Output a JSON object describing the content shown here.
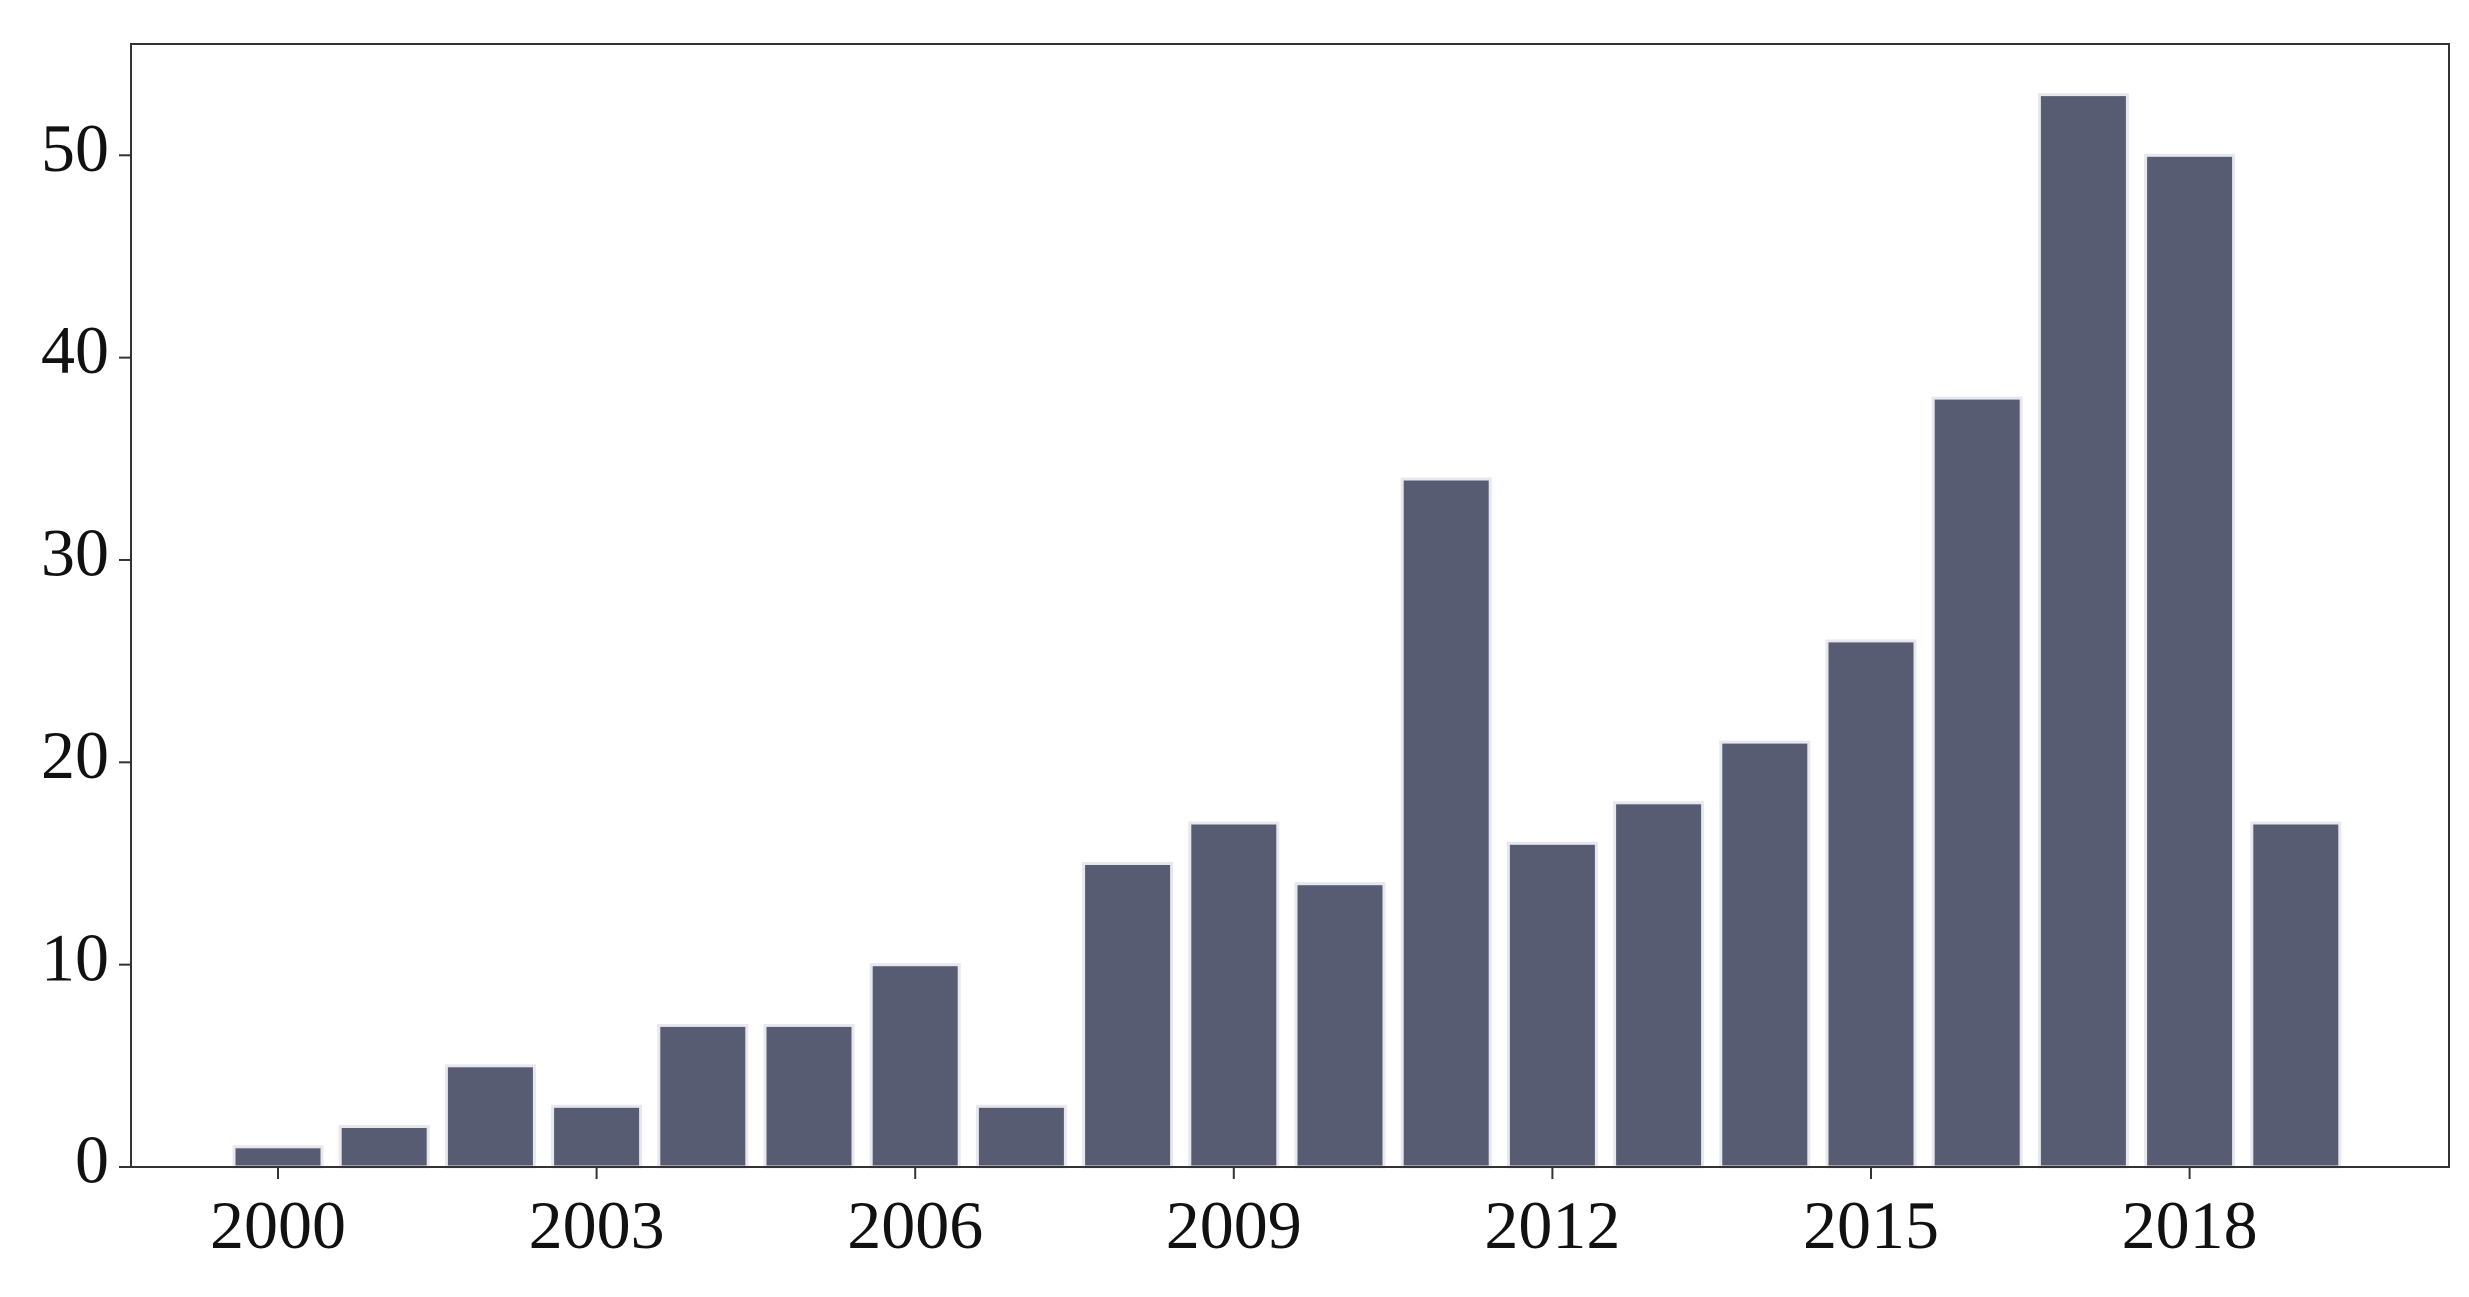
{
  "chart_data": {
    "type": "bar",
    "title": "",
    "xlabel": "",
    "ylabel": "",
    "categories": [
      "2000",
      "2001",
      "2002",
      "2003",
      "2004",
      "2005",
      "2006",
      "2007",
      "2008",
      "2009",
      "2010",
      "2011",
      "2012",
      "2013",
      "2014",
      "2015",
      "2016",
      "2017",
      "2018",
      "2019"
    ],
    "values": [
      1,
      2,
      5,
      3,
      7,
      7,
      10,
      3,
      15,
      17,
      14,
      34,
      16,
      18,
      21,
      26,
      38,
      53,
      50,
      17
    ],
    "x_tick_labels": [
      "2000",
      "2003",
      "2006",
      "2009",
      "2012",
      "2015",
      "2018"
    ],
    "y_ticks": [
      0,
      10,
      20,
      30,
      40,
      50
    ],
    "ylim": [
      0,
      55.5
    ],
    "grid": false,
    "legend": "none",
    "colors": {
      "bar": "#575c73",
      "bar_edge": "#e6e8ee",
      "axis": "#333333"
    }
  }
}
